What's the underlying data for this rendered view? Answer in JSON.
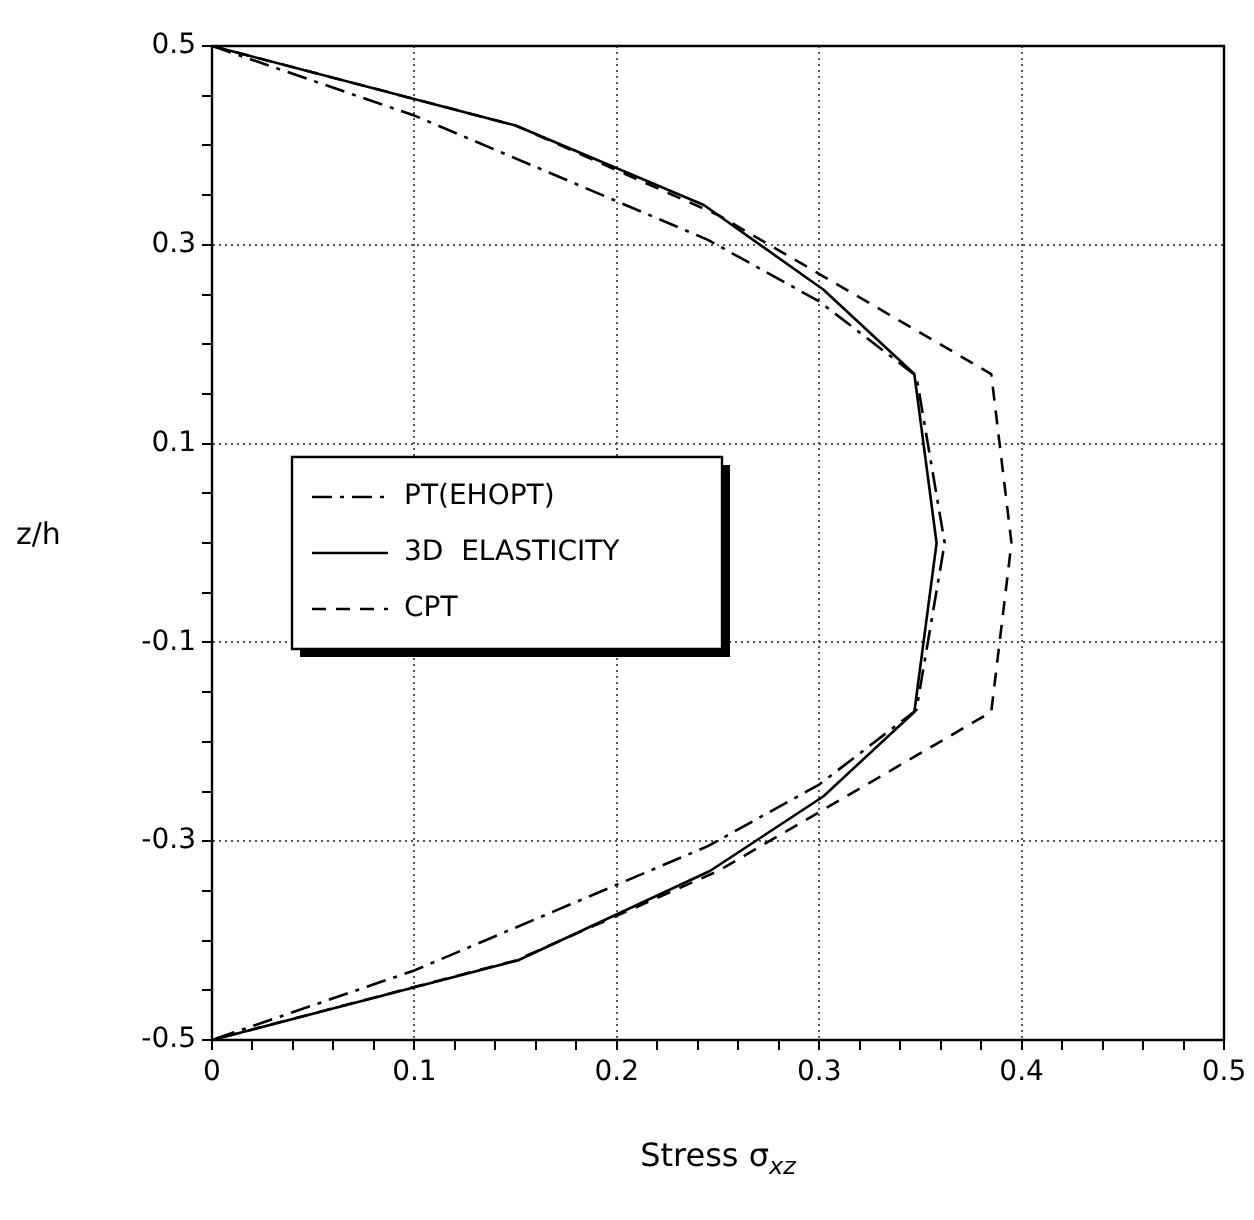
{
  "chart_data": {
    "type": "line",
    "xlabel": "Stress  σ$_{xz}$",
    "ylabel": "z/h",
    "xlim": [
      0,
      0.5
    ],
    "ylim": [
      -0.5,
      0.5
    ],
    "xticks": [
      0,
      {
        "value": 0.02,
        "label": null
      },
      {
        "value": 0.04,
        "label": null
      },
      {
        "value": 0.06,
        "label": null
      },
      {
        "value": 0.08,
        "label": null
      },
      0.1,
      {
        "value": 0.12,
        "label": null
      },
      {
        "value": 0.14,
        "label": null
      },
      {
        "value": 0.16,
        "label": null
      },
      {
        "value": 0.18,
        "label": null
      },
      0.2,
      {
        "value": 0.22,
        "label": null
      },
      {
        "value": 0.24,
        "label": null
      },
      {
        "value": 0.26,
        "label": null
      },
      {
        "value": 0.28,
        "label": null
      },
      0.3,
      {
        "value": 0.32,
        "label": null
      },
      {
        "value": 0.34,
        "label": null
      },
      {
        "value": 0.36,
        "label": null
      },
      {
        "value": 0.38,
        "label": null
      },
      0.4,
      {
        "value": 0.42,
        "label": null
      },
      {
        "value": 0.44,
        "label": null
      },
      {
        "value": 0.46,
        "label": null
      },
      {
        "value": 0.48,
        "label": null
      },
      0.5
    ],
    "yticks": [
      -0.5,
      {
        "value": -0.45,
        "label": null
      },
      {
        "value": -0.4,
        "label": null
      },
      {
        "value": -0.35,
        "label": null
      },
      -0.3,
      {
        "value": -0.25,
        "label": null
      },
      {
        "value": -0.2,
        "label": null
      },
      {
        "value": -0.15,
        "label": null
      },
      -0.1,
      {
        "value": -0.05,
        "label": null
      },
      {
        "value": 0,
        "label": null
      },
      {
        "value": 0.05,
        "label": null
      },
      0.1,
      {
        "value": 0.15,
        "label": null
      },
      {
        "value": 0.2,
        "label": null
      },
      {
        "value": 0.25,
        "label": null
      },
      0.3,
      {
        "value": 0.35,
        "label": null
      },
      {
        "value": 0.4,
        "label": null
      },
      {
        "value": 0.45,
        "label": null
      },
      0.5
    ],
    "grid": true,
    "legend": "left",
    "marker": "none",
    "series": [
      {
        "name": "PT(EHOPT)",
        "color": "#000000",
        "line_style": "dashdot",
        "x": [
          0,
          0.1,
          0.245,
          0.3,
          0.348,
          0.362,
          0.348,
          0.3,
          0.245,
          0.1,
          0
        ],
        "values": [
          0.5,
          0.43,
          0.305,
          0.243,
          0.168,
          0,
          -0.168,
          -0.243,
          -0.305,
          -0.43,
          -0.5
        ]
      },
      {
        "name": "3D  ELASTICITY",
        "color": "#000000",
        "line_style": "solid",
        "x": [
          0,
          0.15,
          0.243,
          0.302,
          0.347,
          0.358,
          0.347,
          0.302,
          0.246,
          0.151,
          0
        ],
        "values": [
          0.5,
          0.42,
          0.34,
          0.255,
          0.17,
          0,
          -0.17,
          -0.255,
          -0.33,
          -0.42,
          -0.5
        ]
      },
      {
        "name": "CPT",
        "color": "#000000",
        "line_style": "dashed",
        "x": [
          0,
          0.15,
          0.25,
          0.385,
          0.395,
          0.385,
          0.25,
          0.15,
          0
        ],
        "values": [
          0.5,
          0.42,
          0.33,
          0.17,
          0,
          -0.17,
          -0.33,
          -0.42,
          -0.5
        ]
      }
    ]
  }
}
